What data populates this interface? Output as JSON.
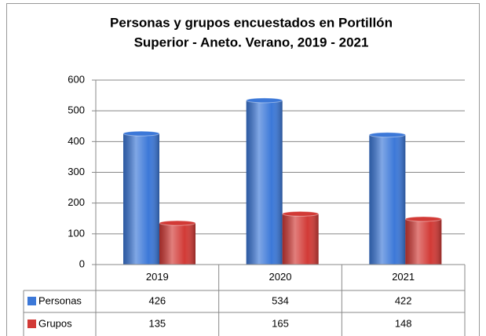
{
  "chart_data": {
    "type": "bar",
    "title": [
      "Personas y grupos encuestados en Portillón",
      "Superior - Aneto. Verano, 2019 - 2021"
    ],
    "categories": [
      "2019",
      "2020",
      "2021"
    ],
    "series": [
      {
        "name": "Personas",
        "color": "#3c78d8",
        "values": [
          426,
          534,
          422
        ]
      },
      {
        "name": "Grupos",
        "color": "#d23a36",
        "values": [
          135,
          165,
          148
        ]
      }
    ],
    "ylim": [
      0,
      600
    ],
    "yticks": [
      0,
      100,
      200,
      300,
      400,
      500,
      600
    ],
    "grid": true,
    "data_table": true
  }
}
